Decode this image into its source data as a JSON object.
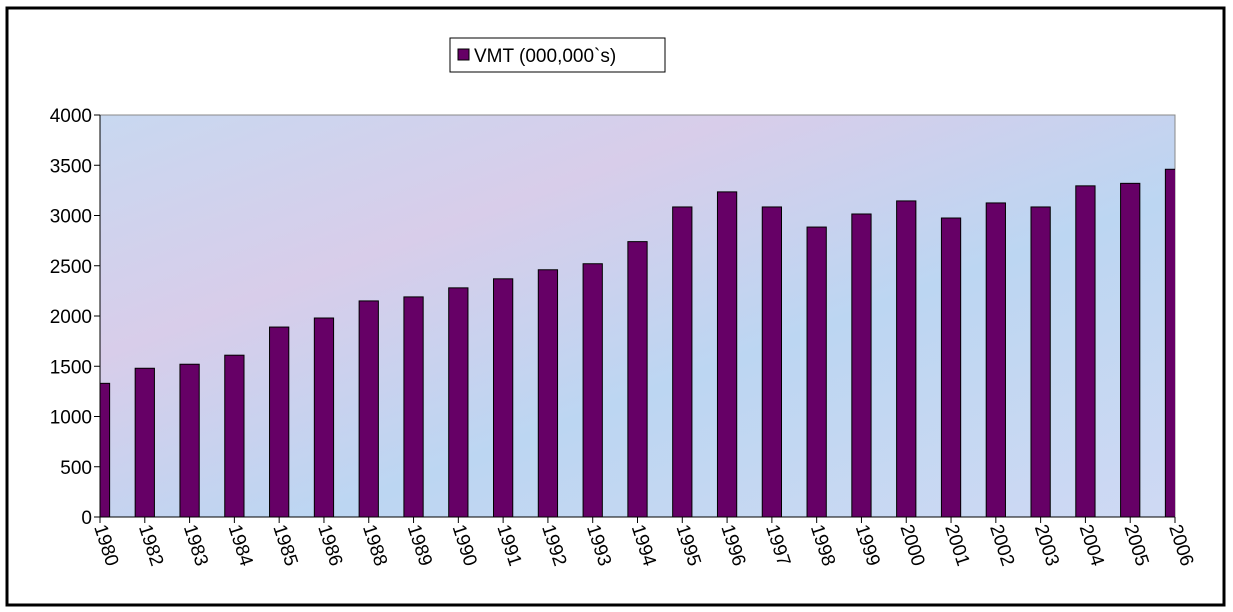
{
  "chart_data": {
    "type": "bar",
    "categories": [
      "1980",
      "1982",
      "1983",
      "1984",
      "1985",
      "1986",
      "1988",
      "1989",
      "1990",
      "1991",
      "1992",
      "1993",
      "1994",
      "1995",
      "1996",
      "1997",
      "1998",
      "1999",
      "2000",
      "2001",
      "2002",
      "2003",
      "2004",
      "2005",
      "2006"
    ],
    "series": [
      {
        "name": "VMT (000,000`s)",
        "color": "#660066",
        "values": [
          1330,
          1480,
          1520,
          1610,
          1890,
          1980,
          2150,
          2190,
          2280,
          2370,
          2460,
          2520,
          2740,
          3085,
          3235,
          3085,
          2885,
          3015,
          3145,
          2975,
          3125,
          3085,
          3295,
          3320,
          3460
        ]
      }
    ],
    "ylim": [
      0,
      4000
    ],
    "yticks": [
      0,
      500,
      1000,
      1500,
      2000,
      2500,
      3000,
      3500,
      4000
    ],
    "legend": "top",
    "grid": false
  }
}
